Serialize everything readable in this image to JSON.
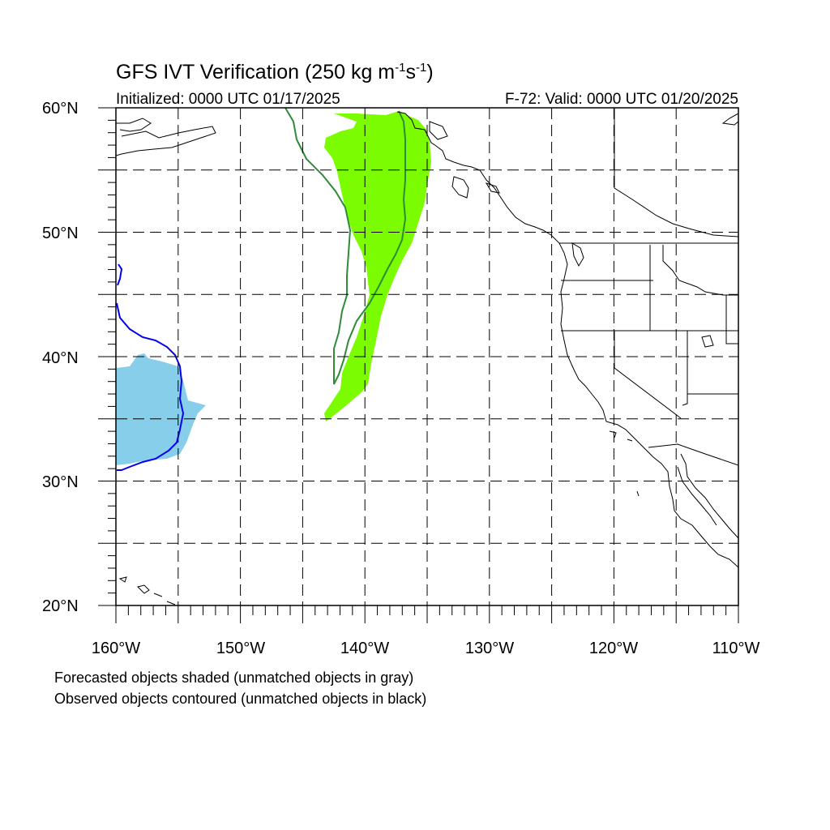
{
  "title": {
    "main": "GFS IVT Verification (250 kg m",
    "sup1": "-1",
    "mid": "s",
    "sup2": "-1",
    "end": ")"
  },
  "initialized": "Initialized: 0000 UTC 01/17/2025",
  "valid": "F-72: Valid: 0000 UTC 01/20/2025",
  "lat_labels": [
    "60°N",
    "50°N",
    "40°N",
    "30°N",
    "20°N"
  ],
  "lon_labels": [
    "160°W",
    "150°W",
    "140°W",
    "130°W",
    "120°W",
    "110°W"
  ],
  "notes": [
    "Forecasted objects shaded (unmatched objects in gray)",
    "Observed objects contoured (unmatched objects in black)"
  ],
  "map_extent": {
    "lon": [
      -160,
      -110
    ],
    "lat": [
      20,
      60
    ]
  },
  "colors": {
    "forecast_green": "#7cfc00",
    "observed_green": "#2e8b3a",
    "forecast_blue": "#87ceeb",
    "observed_blue": "#0000ee"
  }
}
